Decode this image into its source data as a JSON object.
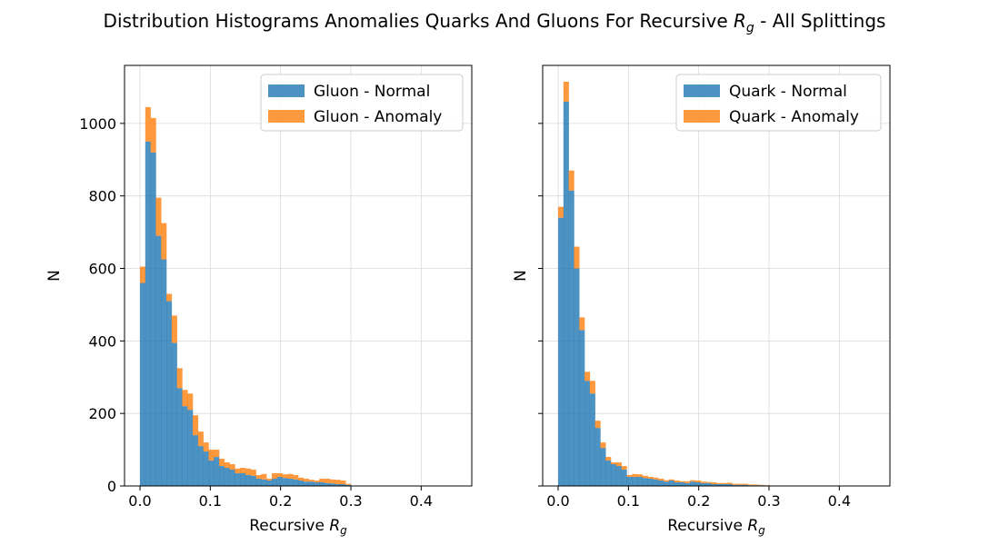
{
  "figure": {
    "title_prefix": "Distribution Histograms Anomalies Quarks And Gluons For Recursive ",
    "title_var": "R",
    "title_sub": "g",
    "title_suffix": " - All Splittings"
  },
  "colors": {
    "normal": "#1f77b4",
    "anomaly": "#ff7f0e",
    "grid": "#d9d9d9"
  },
  "chart_data": [
    {
      "type": "bar",
      "stacked": true,
      "xlabel_prefix": "Recursive ",
      "xlabel_var": "R",
      "xlabel_sub": "g",
      "ylabel": "N",
      "xlim": [
        -0.022,
        0.472
      ],
      "ylim": [
        0,
        1160
      ],
      "xticks": [
        "0.0",
        "0.1",
        "0.2",
        "0.3",
        "0.4"
      ],
      "yticks": [
        "0",
        "200",
        "400",
        "600",
        "800",
        "1000"
      ],
      "grid": true,
      "legend": "top-right",
      "bin_start": 0.0,
      "bin_width": 0.0075,
      "series": [
        {
          "name": "Gluon - Normal",
          "values": [
            560,
            950,
            920,
            690,
            625,
            510,
            395,
            270,
            220,
            210,
            140,
            110,
            95,
            70,
            80,
            55,
            50,
            45,
            35,
            35,
            30,
            28,
            20,
            18,
            15,
            20,
            25,
            22,
            20,
            18,
            15,
            12,
            12,
            10,
            10,
            8,
            7,
            5,
            5,
            3,
            0,
            0,
            0,
            0,
            0,
            0,
            0,
            0,
            0,
            0,
            0,
            0,
            0,
            0,
            0,
            0,
            0,
            0,
            0,
            0
          ]
        },
        {
          "name": "Gluon - Anomaly",
          "values": [
            45,
            95,
            95,
            105,
            100,
            20,
            75,
            55,
            45,
            45,
            55,
            40,
            25,
            30,
            20,
            20,
            15,
            15,
            13,
            15,
            18,
            17,
            10,
            15,
            5,
            15,
            10,
            10,
            13,
            12,
            8,
            8,
            5,
            5,
            10,
            12,
            11,
            12,
            10,
            3,
            0,
            0,
            0,
            0,
            0,
            0,
            0,
            0,
            0,
            0,
            0,
            0,
            0,
            0,
            0,
            0,
            0,
            0,
            0,
            0
          ]
        }
      ]
    },
    {
      "type": "bar",
      "stacked": true,
      "xlabel_prefix": "Recursive ",
      "xlabel_var": "R",
      "xlabel_sub": "g",
      "ylabel": "N",
      "xlim": [
        -0.022,
        0.472
      ],
      "ylim": [
        0,
        1160
      ],
      "xticks": [
        "0.0",
        "0.1",
        "0.2",
        "0.3",
        "0.4"
      ],
      "yticks": [],
      "grid": true,
      "legend": "top-right",
      "bin_start": 0.0,
      "bin_width": 0.0075,
      "series": [
        {
          "name": "Quark - Normal",
          "values": [
            740,
            1060,
            815,
            600,
            430,
            290,
            255,
            160,
            105,
            70,
            60,
            55,
            45,
            25,
            25,
            25,
            22,
            20,
            18,
            15,
            12,
            15,
            10,
            10,
            8,
            12,
            10,
            8,
            8,
            5,
            5,
            5,
            5,
            3,
            3,
            3,
            2,
            2,
            2,
            1,
            0,
            0,
            0,
            0,
            0,
            0,
            0,
            0,
            0,
            0,
            0,
            0,
            0,
            0,
            0,
            0,
            0,
            0,
            0,
            0
          ]
        },
        {
          "name": "Quark - Anomaly",
          "values": [
            30,
            55,
            55,
            60,
            35,
            25,
            35,
            20,
            15,
            10,
            5,
            10,
            10,
            5,
            8,
            7,
            6,
            5,
            5,
            5,
            4,
            3,
            5,
            3,
            5,
            4,
            5,
            4,
            3,
            5,
            3,
            3,
            4,
            3,
            3,
            3,
            2,
            2,
            1,
            1,
            0,
            0,
            0,
            0,
            0,
            0,
            0,
            0,
            0,
            0,
            0,
            0,
            0,
            0,
            0,
            0,
            0,
            0,
            0,
            0
          ]
        }
      ]
    }
  ]
}
